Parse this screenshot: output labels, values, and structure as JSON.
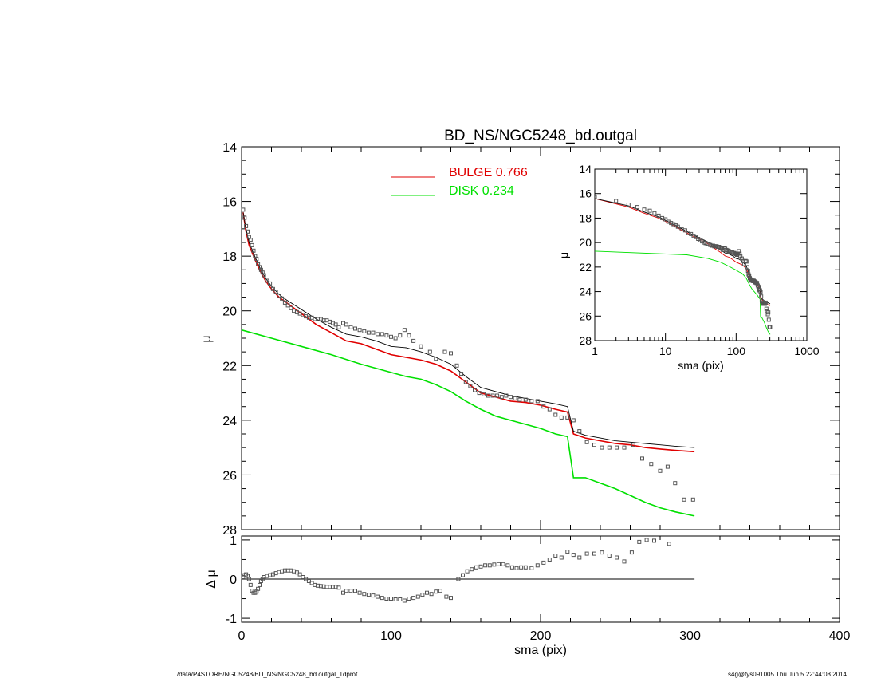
{
  "title": "BD_NS/NGC5248_bd.outgal",
  "footer_left": "/data/P4STORE/NGC5248/BD_NS/NGC5248_bd.outgal_1dprof",
  "footer_right": "s4g@fys091005  Thu Jun  5 22:44:08 2014",
  "colors": {
    "bulge": "#e00000",
    "disk": "#00e000",
    "total": "#000000",
    "data": "#555555"
  },
  "chart_data": [
    {
      "type": "line",
      "panel": "main",
      "xlabel": "sma (pix)",
      "ylabel": "μ",
      "xlim": [
        0,
        400
      ],
      "ylim": [
        28,
        14
      ],
      "x_ticks": [
        "0",
        "100",
        "200",
        "300",
        "400"
      ],
      "y_ticks": [
        "14",
        "16",
        "18",
        "20",
        "22",
        "24",
        "26",
        "28"
      ],
      "legend": [
        {
          "label": "BULGE",
          "value": "0.766",
          "color": "#e00000"
        },
        {
          "label": "DISK",
          "value": "0.234",
          "color": "#00e000"
        }
      ],
      "series": [
        {
          "name": "BULGE",
          "color": "#e00000",
          "x": [
            1,
            3,
            5,
            8,
            12,
            16,
            20,
            25,
            30,
            40,
            50,
            60,
            70,
            80,
            90,
            100,
            110,
            120,
            130,
            140,
            150,
            160,
            170,
            180,
            190,
            200,
            210,
            218,
            222,
            230,
            240,
            250,
            260,
            270,
            280,
            290,
            303
          ],
          "y": [
            16.4,
            17.1,
            17.6,
            18.0,
            18.5,
            18.9,
            19.2,
            19.5,
            19.7,
            20.1,
            20.5,
            20.8,
            21.1,
            21.2,
            21.4,
            21.6,
            21.7,
            21.8,
            21.95,
            22.2,
            22.6,
            23.0,
            23.15,
            23.3,
            23.35,
            23.45,
            23.6,
            23.7,
            24.5,
            24.65,
            24.75,
            24.85,
            24.9,
            25.0,
            25.05,
            25.1,
            25.15
          ]
        },
        {
          "name": "DISK",
          "color": "#00e000",
          "x": [
            0,
            20,
            40,
            60,
            80,
            100,
            110,
            120,
            130,
            140,
            150,
            160,
            170,
            180,
            190,
            200,
            210,
            218,
            222,
            230,
            240,
            250,
            260,
            270,
            280,
            290,
            303
          ],
          "y": [
            20.7,
            21.0,
            21.3,
            21.6,
            21.95,
            22.25,
            22.4,
            22.5,
            22.7,
            22.95,
            23.3,
            23.6,
            23.85,
            24.0,
            24.15,
            24.3,
            24.5,
            24.6,
            26.1,
            26.1,
            26.3,
            26.5,
            26.75,
            27.0,
            27.2,
            27.35,
            27.5
          ]
        },
        {
          "name": "",
          "color": "#000000",
          "x": [
            1,
            3,
            5,
            8,
            12,
            16,
            20,
            25,
            30,
            40,
            50,
            60,
            70,
            80,
            90,
            100,
            110,
            120,
            130,
            140,
            150,
            160,
            170,
            180,
            190,
            200,
            210,
            218,
            222,
            230,
            240,
            250,
            260,
            270,
            280,
            290,
            303
          ],
          "y": [
            16.4,
            17.0,
            17.5,
            17.9,
            18.4,
            18.8,
            19.1,
            19.4,
            19.6,
            19.95,
            20.3,
            20.6,
            20.85,
            20.95,
            21.1,
            21.3,
            21.35,
            21.5,
            21.7,
            21.95,
            22.4,
            22.8,
            22.95,
            23.1,
            23.2,
            23.3,
            23.4,
            23.5,
            24.4,
            24.55,
            24.65,
            24.75,
            24.8,
            24.85,
            24.9,
            24.95,
            25.0
          ]
        }
      ],
      "points": {
        "x": [
          1,
          2,
          3,
          4,
          5,
          6,
          7,
          8,
          9,
          10,
          11,
          12,
          13,
          14,
          15,
          17,
          19,
          21,
          23,
          25,
          27,
          29,
          31,
          33,
          35,
          37,
          39,
          41,
          43,
          45,
          47,
          49,
          51,
          53,
          55,
          57,
          59,
          61,
          63,
          65,
          68,
          70,
          73,
          76,
          79,
          82,
          85,
          88,
          91,
          94,
          97,
          100,
          103,
          106,
          109,
          112,
          115,
          120,
          126,
          130,
          136,
          140,
          144,
          147,
          150,
          153,
          156,
          159,
          162,
          165,
          168,
          171,
          174,
          177,
          180,
          183,
          186,
          190,
          194,
          198,
          202,
          206,
          210,
          214,
          218,
          222,
          226,
          231,
          236,
          241,
          246,
          251,
          256,
          262,
          268,
          274,
          280,
          285,
          290,
          296,
          302
        ],
        "y": [
          16.3,
          16.6,
          16.9,
          17.1,
          17.3,
          17.4,
          17.6,
          17.8,
          18.0,
          18.1,
          18.3,
          18.4,
          18.5,
          18.6,
          18.7,
          18.9,
          19.0,
          19.2,
          19.3,
          19.45,
          19.55,
          19.7,
          19.8,
          19.9,
          20.0,
          20.05,
          20.1,
          20.15,
          20.2,
          20.25,
          20.25,
          20.3,
          20.3,
          20.3,
          20.35,
          20.35,
          20.4,
          20.45,
          20.5,
          20.6,
          20.45,
          20.5,
          20.6,
          20.65,
          20.7,
          20.75,
          20.8,
          20.8,
          20.85,
          20.85,
          20.9,
          20.95,
          21.0,
          20.9,
          20.7,
          20.9,
          21.1,
          21.3,
          21.5,
          21.75,
          21.5,
          21.55,
          22.0,
          22.3,
          22.6,
          22.75,
          22.9,
          23.0,
          23.05,
          23.1,
          23.1,
          23.1,
          23.15,
          23.1,
          23.15,
          23.2,
          23.25,
          23.25,
          23.3,
          23.3,
          23.5,
          23.6,
          23.8,
          23.9,
          23.9,
          24.0,
          24.4,
          24.8,
          24.9,
          25.0,
          25.0,
          25.0,
          25.0,
          24.9,
          25.4,
          25.6,
          25.85,
          25.7,
          26.3,
          26.9,
          26.9
        ]
      }
    },
    {
      "type": "scatter",
      "panel": "residual",
      "xlabel": "sma (pix)",
      "ylabel": "Δ μ",
      "xlim": [
        0,
        400
      ],
      "ylim": [
        -1.1,
        1.1
      ],
      "y_ticks": [
        "1",
        "0",
        "-1"
      ],
      "reference_line": {
        "y": 0,
        "x_range": [
          0,
          303
        ]
      },
      "points": {
        "x": [
          1,
          2,
          3,
          4,
          5,
          6,
          7,
          8,
          9,
          10,
          11,
          12,
          13,
          14,
          15,
          17,
          19,
          21,
          23,
          25,
          27,
          29,
          31,
          33,
          35,
          37,
          39,
          41,
          43,
          45,
          47,
          49,
          51,
          53,
          55,
          57,
          59,
          61,
          63,
          65,
          68,
          70,
          73,
          76,
          79,
          82,
          85,
          88,
          91,
          94,
          97,
          100,
          103,
          106,
          109,
          112,
          115,
          118,
          121,
          124,
          127,
          130,
          133,
          137,
          140,
          145,
          148,
          151,
          154,
          157,
          160,
          163,
          166,
          169,
          172,
          175,
          178,
          181,
          184,
          187,
          190,
          194,
          198,
          202,
          206,
          210,
          214,
          218,
          222,
          226,
          231,
          236,
          241,
          246,
          251,
          256,
          261,
          266,
          271,
          276,
          286
        ],
        "y": [
          0.05,
          0.1,
          0.12,
          0.08,
          0.0,
          -0.15,
          -0.3,
          -0.35,
          -0.35,
          -0.32,
          -0.25,
          -0.15,
          -0.05,
          0.0,
          0.05,
          0.08,
          0.1,
          0.12,
          0.15,
          0.18,
          0.2,
          0.22,
          0.22,
          0.22,
          0.2,
          0.17,
          0.12,
          0.05,
          0.0,
          -0.05,
          -0.1,
          -0.15,
          -0.17,
          -0.18,
          -0.19,
          -0.2,
          -0.2,
          -0.2,
          -0.2,
          -0.22,
          -0.35,
          -0.3,
          -0.3,
          -0.3,
          -0.35,
          -0.38,
          -0.4,
          -0.42,
          -0.45,
          -0.48,
          -0.5,
          -0.5,
          -0.52,
          -0.52,
          -0.55,
          -0.5,
          -0.48,
          -0.45,
          -0.4,
          -0.35,
          -0.38,
          -0.32,
          -0.3,
          -0.45,
          -0.48,
          0.0,
          0.1,
          0.2,
          0.25,
          0.3,
          0.32,
          0.35,
          0.35,
          0.37,
          0.38,
          0.38,
          0.35,
          0.3,
          0.28,
          0.3,
          0.3,
          0.28,
          0.35,
          0.42,
          0.5,
          0.6,
          0.55,
          0.7,
          0.62,
          0.55,
          0.65,
          0.65,
          0.68,
          0.6,
          0.55,
          0.45,
          0.68,
          0.95,
          1.0,
          0.98,
          0.9
        ]
      }
    },
    {
      "type": "line",
      "panel": "inset",
      "xlabel": "sma (pix)",
      "ylabel": "μ",
      "xscale": "log",
      "xlim": [
        1,
        1000
      ],
      "ylim": [
        28,
        14
      ],
      "x_ticks": [
        "1",
        "10",
        "100",
        "1000"
      ],
      "y_ticks": [
        "14",
        "16",
        "18",
        "20",
        "22",
        "24",
        "26",
        "28"
      ],
      "series_ref": "same profiles as main panel, plotted against log sma"
    }
  ]
}
